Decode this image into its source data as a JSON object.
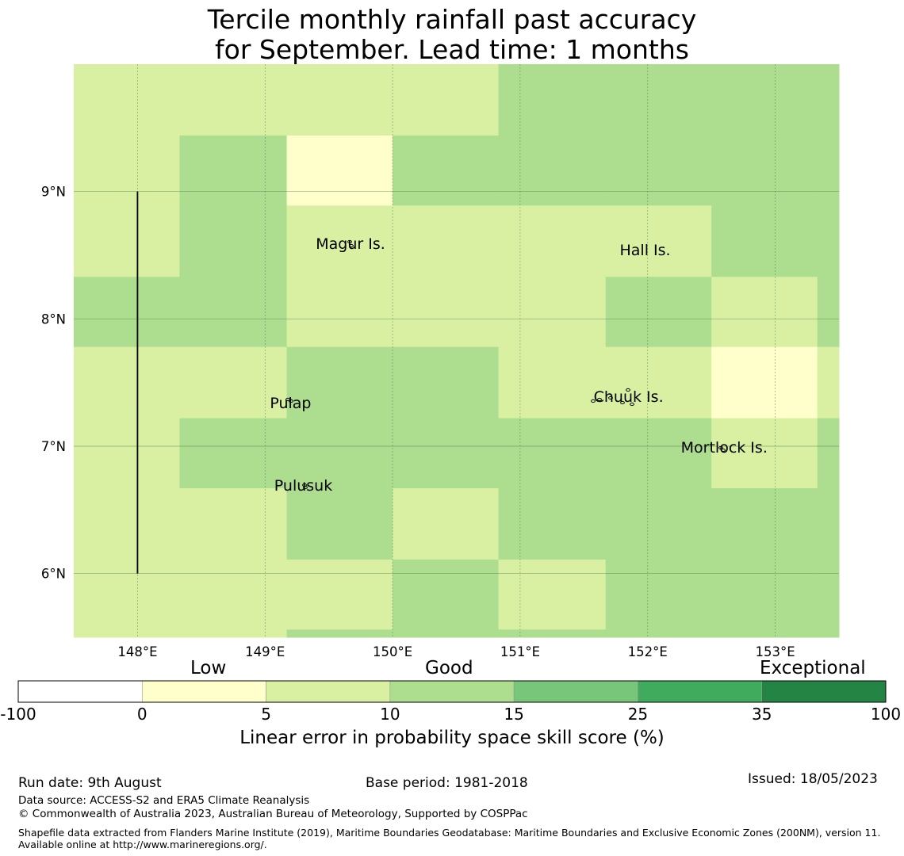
{
  "title": {
    "line1": "Tercile monthly rainfall past accuracy",
    "line2": "for September. Lead time: 1 months"
  },
  "map": {
    "lon_range": [
      147.5,
      153.5
    ],
    "lat_range": [
      5.5,
      10.0
    ],
    "x_ticks": [
      {
        "value": 148,
        "label": "148°E"
      },
      {
        "value": 149,
        "label": "149°E"
      },
      {
        "value": 150,
        "label": "150°E"
      },
      {
        "value": 151,
        "label": "151°E"
      },
      {
        "value": 152,
        "label": "152°E"
      },
      {
        "value": 153,
        "label": "153°E"
      }
    ],
    "y_ticks": [
      {
        "value": 9,
        "label": "9°N"
      },
      {
        "value": 8,
        "label": "8°N"
      },
      {
        "value": 7,
        "label": "7°N"
      },
      {
        "value": 6,
        "label": "6°N"
      }
    ],
    "grid_lines": true,
    "grid": {
      "lon_edges": [
        147.5,
        148.33,
        149.17,
        150.0,
        150.83,
        151.67,
        152.5,
        153.33,
        153.5
      ],
      "lat_edges": [
        10.0,
        9.44,
        8.89,
        8.33,
        7.78,
        7.22,
        6.67,
        6.11,
        5.56,
        5.5
      ],
      "skill_class": [
        [
          2,
          2,
          2,
          2,
          3,
          3,
          3,
          3
        ],
        [
          2,
          3,
          1,
          3,
          3,
          3,
          3,
          3
        ],
        [
          2,
          3,
          2,
          2,
          2,
          2,
          3,
          3
        ],
        [
          3,
          3,
          2,
          2,
          2,
          3,
          2,
          3
        ],
        [
          2,
          2,
          3,
          3,
          2,
          2,
          1,
          2
        ],
        [
          2,
          3,
          3,
          3,
          3,
          3,
          2,
          3
        ],
        [
          2,
          2,
          3,
          2,
          3,
          3,
          3,
          3
        ],
        [
          2,
          2,
          2,
          3,
          2,
          3,
          3,
          3
        ],
        [
          2,
          2,
          3,
          3,
          3,
          3,
          3,
          3
        ]
      ]
    },
    "boundary_line": {
      "lon": 148.0,
      "lat_from": 6.0,
      "lat_to": 9.0
    },
    "islands": [
      {
        "name": "Magur Is.",
        "lon": 149.67,
        "lat": 8.55
      },
      {
        "name": "Hall Is.",
        "lon": 151.98,
        "lat": 8.5
      },
      {
        "name": "Pulap",
        "lon": 149.2,
        "lat": 7.3
      },
      {
        "name": "Chuuk Is.",
        "lon": 151.85,
        "lat": 7.35
      },
      {
        "name": "Mortlock Is.",
        "lon": 152.6,
        "lat": 6.95
      },
      {
        "name": "Pulusuk",
        "lon": 149.3,
        "lat": 6.65
      }
    ]
  },
  "colorbar": {
    "bounds": [
      "-100",
      "0",
      "5",
      "10",
      "15",
      "25",
      "35",
      "100"
    ],
    "colors": [
      "#ffffff",
      "#ffffcc",
      "#d9f0a3",
      "#addd8e",
      "#78c679",
      "#41ab5d",
      "#238443"
    ],
    "categories": [
      {
        "label": "Low"
      },
      {
        "label": "Good"
      },
      {
        "label": "Exceptional"
      }
    ],
    "xlabel": "Linear error in probability space skill score (%)"
  },
  "footer": {
    "run_date": "Run date: 9th August",
    "base_period": "Base period: 1981-2018",
    "issued": "Issued: 18/05/2023",
    "data_source": "Data source: ACCESS-S2 and ERA5 Climate Reanalysis",
    "copyright": "© Commonwealth of Australia 2023, Australian Bureau of Meteorology, Supported by COSPPac",
    "shapefile": "Shapefile data extracted from Flanders Marine Institute (2019), Maritime Boundaries Geodatabase: Maritime Boundaries and Exclusive Economic Zones (200NM), version 11. Available online at http://www.marineregions.org/."
  }
}
